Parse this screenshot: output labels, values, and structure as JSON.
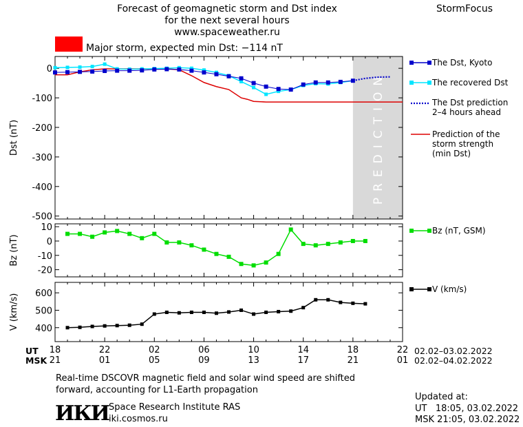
{
  "header": {
    "title_line1": "Forecast of geomagnetic storm and Dst index",
    "title_line2": "for the next several hours",
    "url": "www.spaceweather.ru",
    "brand": "StormFocus"
  },
  "storm_indicator": {
    "color": "#ff0000",
    "text": "Major storm, expected min Dst: −114 nT"
  },
  "prediction_zone_label": "PREDICTION",
  "legend": {
    "dst_kyoto": "The Dst, Kyoto",
    "dst_recovered": "The recovered Dst",
    "dst_prediction_line1": "The Dst prediction",
    "dst_prediction_line2": "2–4 hours ahead",
    "storm_strength_line1": "Prediction of the",
    "storm_strength_line2": "storm strength",
    "storm_strength_line3": "(min Dst)",
    "bz": "Bz (nT, GSM)",
    "v": "V (km/s)"
  },
  "time_axis": {
    "ut_label": "UT",
    "msk_label": "MSK",
    "ut_ticks": [
      "18",
      "22",
      "02",
      "06",
      "10",
      "14",
      "18",
      "22"
    ],
    "msk_ticks": [
      "21",
      "01",
      "05",
      "09",
      "13",
      "17",
      "21",
      "01"
    ],
    "ut_range": "02.02–03.02.2022",
    "msk_range": "02.02–04.02.2022"
  },
  "footer": {
    "note_line1": "Real-time DSCOVR magnetic field and solar wind speed are shifted",
    "note_line2": "forward, accounting for L1-Earth propagation",
    "logo_text": "ИКИ",
    "institute": "Space Research Institute RAS",
    "site": "iki.cosmos.ru",
    "updated_label": "Updated at:",
    "updated_ut": "UT   18:05, 03.02.2022",
    "updated_msk": "MSK 21:05, 03.02.2022"
  },
  "colors": {
    "dst_kyoto": "#0000cc",
    "dst_recovered": "#00e5ff",
    "dst_prediction": "#0000cc",
    "storm_strength": "#dd0000",
    "bz": "#00dd00",
    "v": "#000000",
    "prediction_zone": "#d9d9d9"
  },
  "chart_data": [
    {
      "type": "line",
      "panel": "dst",
      "ylabel": "Dst (nT)",
      "ylim": [
        -510,
        40
      ],
      "y_ticks": [
        0,
        -100,
        -200,
        -300,
        -400,
        -500
      ],
      "x_unit": "hours since 18:00 UT 02.02.2022",
      "xlim": [
        0,
        28
      ],
      "prediction_zone": [
        24,
        28
      ],
      "series": [
        {
          "name": "The Dst, Kyoto",
          "x": [
            0,
            1,
            2,
            3,
            4,
            5,
            6,
            7,
            8,
            9,
            10,
            11,
            12,
            13,
            14,
            15,
            16,
            17,
            18,
            19,
            20,
            21,
            22,
            23,
            24
          ],
          "y": [
            -14,
            -13,
            -12,
            -11,
            -9,
            -8,
            -8,
            -7,
            -4,
            -3,
            -4,
            -8,
            -14,
            -20,
            -27,
            -34,
            -50,
            -62,
            -70,
            -72,
            -55,
            -48,
            -48,
            -46,
            -42
          ]
        },
        {
          "name": "The recovered Dst",
          "x": [
            0,
            1,
            2,
            3,
            4,
            5,
            6,
            7,
            8,
            9,
            10,
            11,
            12,
            13,
            14,
            15,
            16,
            17,
            18,
            19,
            20,
            21,
            22,
            23,
            24
          ],
          "y": [
            2,
            3,
            4,
            6,
            14,
            -2,
            -3,
            -2,
            -1,
            0,
            2,
            0,
            -6,
            -14,
            -25,
            -45,
            -65,
            -88,
            -78,
            -72,
            -58,
            -52,
            -53,
            -48,
            -42
          ]
        },
        {
          "name": "The Dst prediction",
          "x": [
            24,
            25,
            26,
            27
          ],
          "y": [
            -42,
            -34,
            -30,
            -29
          ]
        },
        {
          "name": "Prediction of the storm strength",
          "x": [
            0,
            1,
            2,
            3,
            4,
            5,
            6,
            7,
            8,
            9,
            10,
            11,
            12,
            13,
            14,
            15,
            15.5,
            16,
            17,
            18,
            20,
            22,
            24,
            26,
            28
          ],
          "y": [
            -22,
            -22,
            -12,
            -5,
            -2,
            -2,
            -2,
            -2,
            -2,
            -2,
            -5,
            -25,
            -48,
            -62,
            -72,
            -100,
            -105,
            -112,
            -114,
            -114,
            -114,
            -114,
            -114,
            -114,
            -114
          ]
        }
      ]
    },
    {
      "type": "line",
      "panel": "bz",
      "ylabel": "Bz (nT)",
      "ylim": [
        -25,
        12
      ],
      "y_ticks": [
        10,
        0,
        -10,
        -20
      ],
      "series": [
        {
          "name": "Bz (nT, GSM)",
          "x": [
            1,
            2,
            3,
            4,
            5,
            6,
            7,
            8,
            9,
            10,
            11,
            12,
            13,
            14,
            15,
            16,
            17,
            18,
            19,
            20,
            21,
            22,
            23,
            24,
            25
          ],
          "y": [
            5,
            5,
            3,
            6,
            7,
            5,
            2,
            5,
            -1,
            -1,
            -3,
            -6,
            -9,
            -11,
            -16,
            -17,
            -15,
            -9,
            8,
            -2,
            -3,
            -2,
            -1,
            0,
            0
          ]
        }
      ]
    },
    {
      "type": "line",
      "panel": "v",
      "ylabel": "V (km/s)",
      "ylim": [
        320,
        660
      ],
      "y_ticks": [
        600,
        500,
        400
      ],
      "series": [
        {
          "name": "V (km/s)",
          "x": [
            1,
            2,
            3,
            4,
            5,
            6,
            7,
            8,
            9,
            10,
            11,
            12,
            13,
            14,
            15,
            16,
            17,
            18,
            19,
            20,
            21,
            22,
            23,
            24,
            25
          ],
          "y": [
            400,
            402,
            407,
            410,
            412,
            414,
            420,
            478,
            488,
            485,
            488,
            488,
            483,
            490,
            500,
            478,
            488,
            492,
            495,
            515,
            560,
            560,
            545,
            540,
            537
          ]
        }
      ]
    }
  ]
}
